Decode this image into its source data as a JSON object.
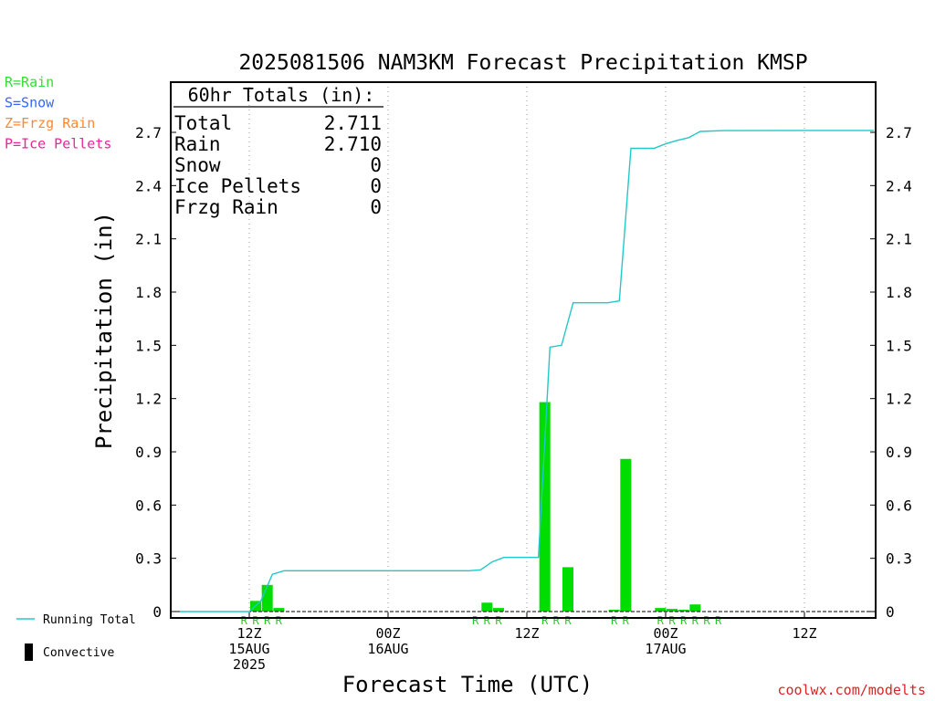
{
  "chart_data": {
    "type": "bar",
    "title": "2025081506 NAM3KM Forecast Precipitation KMSP",
    "xlabel": "Forecast Time (UTC)",
    "ylabel": "Precipitation (in)",
    "ylim": [
      0,
      2.9
    ],
    "yticks": [
      "0",
      "0.3",
      "0.6",
      "0.9",
      "1.2",
      "1.5",
      "1.8",
      "2.1",
      "2.4",
      "2.7"
    ],
    "y_axis_both_sides": true,
    "xlim_hours": [
      0,
      60
    ],
    "xticks": [
      {
        "hour": 6,
        "label": [
          "12Z",
          "15AUG",
          "2025"
        ]
      },
      {
        "hour": 18,
        "label": [
          "00Z",
          "16AUG"
        ]
      },
      {
        "hour": 30,
        "label": [
          "12Z"
        ]
      },
      {
        "hour": 42,
        "label": [
          "00Z",
          "17AUG"
        ]
      },
      {
        "hour": 54,
        "label": [
          "12Z"
        ]
      }
    ],
    "grid_x": "dotted vertical",
    "precip_type_legend": [
      {
        "text": "R=Rain",
        "color": "#33dd33"
      },
      {
        "text": "S=Snow",
        "color": "#3366ff"
      },
      {
        "text": "Z=Frzg Rain",
        "color": "#ff8833"
      },
      {
        "text": "P=Ice Pellets",
        "color": "#ee2299"
      }
    ],
    "series_legend": [
      {
        "text": "Running Total",
        "color": "#22c8c8",
        "kind": "line"
      },
      {
        "text": "Convective",
        "color": "#000000",
        "kind": "bar"
      }
    ],
    "totals_table": {
      "header": "60hr Totals (in):",
      "rows": [
        {
          "label": "Total",
          "value": "2.711"
        },
        {
          "label": "Rain",
          "value": "2.710"
        },
        {
          "label": "Snow",
          "value": "0"
        },
        {
          "label": "Ice Pellets",
          "value": "0"
        },
        {
          "label": "Frzg Rain",
          "value": "0"
        }
      ]
    },
    "bar_color": "#00dd00",
    "line_color": "#22c8c8",
    "precip_bars": [
      {
        "hour": 7,
        "value": 0.06
      },
      {
        "hour": 8,
        "value": 0.15
      },
      {
        "hour": 9,
        "value": 0.02
      },
      {
        "hour": 27,
        "value": 0.05
      },
      {
        "hour": 28,
        "value": 0.02
      },
      {
        "hour": 32,
        "value": 1.18
      },
      {
        "hour": 34,
        "value": 0.25
      },
      {
        "hour": 38,
        "value": 0.01
      },
      {
        "hour": 39,
        "value": 0.86
      },
      {
        "hour": 42,
        "value": 0.02
      },
      {
        "hour": 43,
        "value": 0.015
      },
      {
        "hour": 44,
        "value": 0.01
      },
      {
        "hour": 45,
        "value": 0.04
      }
    ],
    "type_markers": [
      {
        "hour": 6,
        "text": "R"
      },
      {
        "hour": 7,
        "text": "R"
      },
      {
        "hour": 8,
        "text": "R"
      },
      {
        "hour": 9,
        "text": "R"
      },
      {
        "hour": 26,
        "text": "R"
      },
      {
        "hour": 27,
        "text": "R"
      },
      {
        "hour": 28,
        "text": "R"
      },
      {
        "hour": 32,
        "text": "R"
      },
      {
        "hour": 33,
        "text": "R"
      },
      {
        "hour": 34,
        "text": "R"
      },
      {
        "hour": 38,
        "text": "R"
      },
      {
        "hour": 39,
        "text": "R"
      },
      {
        "hour": 42,
        "text": "R"
      },
      {
        "hour": 43,
        "text": "R"
      },
      {
        "hour": 44,
        "text": "R"
      },
      {
        "hour": 45,
        "text": "R"
      },
      {
        "hour": 46,
        "text": "R"
      },
      {
        "hour": 47,
        "text": "R"
      }
    ],
    "running_total": [
      {
        "hour": 0,
        "value": 0
      },
      {
        "hour": 6,
        "value": 0
      },
      {
        "hour": 7,
        "value": 0.06
      },
      {
        "hour": 8,
        "value": 0.21
      },
      {
        "hour": 9,
        "value": 0.23
      },
      {
        "hour": 25,
        "value": 0.23
      },
      {
        "hour": 26,
        "value": 0.235
      },
      {
        "hour": 27,
        "value": 0.28
      },
      {
        "hour": 28,
        "value": 0.305
      },
      {
        "hour": 31,
        "value": 0.305
      },
      {
        "hour": 32,
        "value": 1.49
      },
      {
        "hour": 33,
        "value": 1.5
      },
      {
        "hour": 34,
        "value": 1.74
      },
      {
        "hour": 37,
        "value": 1.74
      },
      {
        "hour": 38,
        "value": 1.75
      },
      {
        "hour": 39,
        "value": 2.61
      },
      {
        "hour": 41,
        "value": 2.61
      },
      {
        "hour": 42,
        "value": 2.635
      },
      {
        "hour": 43,
        "value": 2.655
      },
      {
        "hour": 44,
        "value": 2.67
      },
      {
        "hour": 45,
        "value": 2.705
      },
      {
        "hour": 47,
        "value": 2.71
      },
      {
        "hour": 60,
        "value": 2.711
      }
    ],
    "credit": "coolwx.com/modelts"
  }
}
